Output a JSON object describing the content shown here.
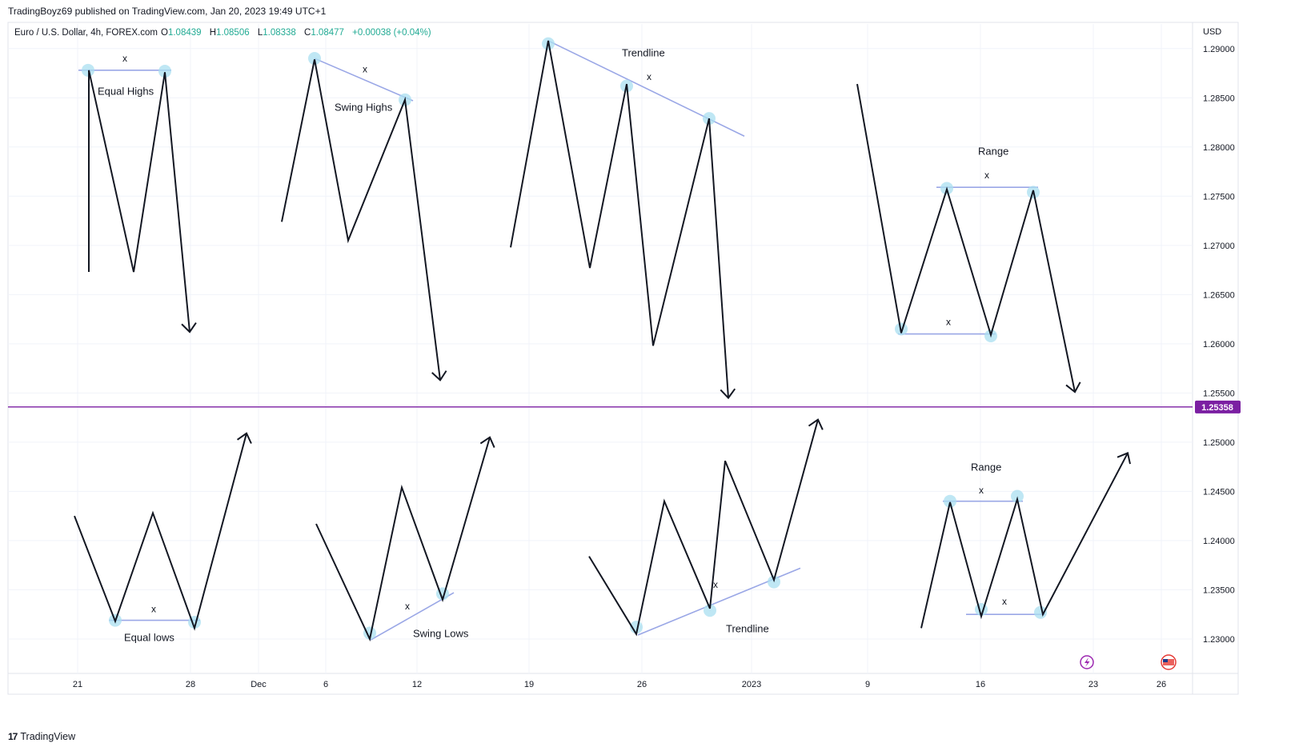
{
  "header": {
    "publisher": "TradingBoyz69 published on TradingView.com, Jan 20, 2023 19:49 UTC+1"
  },
  "footer": {
    "brand": "TradingView",
    "logo_glyph": "17"
  },
  "chart_data": {
    "type": "line",
    "symbol": {
      "name": "Euro / U.S. Dollar, 4h, FOREX.com",
      "o_label": "O",
      "o_value": "1.08439",
      "h_label": "H",
      "h_value": "1.08506",
      "l_label": "L",
      "l_value": "1.08338",
      "c_label": "C",
      "c_value": "1.08477",
      "change": "+0.00038 (+0.04%)"
    },
    "currency": "USD",
    "ylim": [
      1.2265,
      1.2925
    ],
    "y_ticks": [
      "1.23000",
      "1.23500",
      "1.24000",
      "1.24500",
      "1.25000",
      "1.25500",
      "1.26000",
      "1.26500",
      "1.27000",
      "1.27500",
      "1.28000",
      "1.28500",
      "1.29000"
    ],
    "x_ticks": [
      "21",
      "28",
      "Dec",
      "6",
      "12",
      "19",
      "26",
      "2023",
      "9",
      "16",
      "23",
      "26"
    ],
    "price_line": {
      "value": 1.25358,
      "label": "1.25358",
      "color": "#7b1fa2"
    },
    "colors": {
      "price": "#131722",
      "level": "#9aa7e6",
      "marker": "#a9dff0",
      "up": "#22ab94",
      "grid": "#f0f3fa"
    },
    "series": [
      {
        "points": [
          [
            1.2673,
            0
          ],
          [
            1.2878,
            0
          ],
          [
            1.2673,
            1
          ],
          [
            1.2876,
            2
          ],
          [
            1.2612,
            3
          ]
        ]
      },
      {
        "points": [
          [
            1.2724,
            4
          ],
          [
            1.2889,
            5
          ],
          [
            1.2705,
            6
          ],
          [
            1.2848,
            7
          ],
          [
            1.2563,
            8
          ]
        ]
      },
      {
        "points": [
          [
            1.2698,
            9
          ],
          [
            1.2908,
            10
          ],
          [
            1.2677,
            11
          ],
          [
            1.2864,
            12
          ],
          [
            1.2598,
            13
          ],
          [
            1.2829,
            14
          ],
          [
            1.2545,
            15
          ]
        ]
      },
      {
        "points": [
          [
            1.2864,
            16
          ],
          [
            1.2611,
            17
          ],
          [
            1.2757,
            18
          ],
          [
            1.2609,
            19
          ],
          [
            1.2756,
            20
          ],
          [
            1.2551,
            21
          ]
        ]
      },
      {
        "points": [
          [
            1.2425,
            22
          ],
          [
            1.2318,
            23
          ],
          [
            1.2428,
            24
          ],
          [
            1.2311,
            25
          ],
          [
            1.2509,
            26
          ]
        ]
      },
      {
        "points": [
          [
            1.2417,
            27
          ],
          [
            1.23,
            28
          ],
          [
            1.2454,
            29
          ],
          [
            1.234,
            30
          ],
          [
            1.2505,
            31
          ]
        ]
      },
      {
        "points": [
          [
            1.2384,
            32
          ],
          [
            1.2305,
            33
          ],
          [
            1.244,
            34
          ],
          [
            1.2331,
            35
          ],
          [
            1.2481,
            36
          ],
          [
            1.236,
            37
          ],
          [
            1.2523,
            38
          ]
        ]
      },
      {
        "points": [
          [
            1.2311,
            39
          ],
          [
            1.2439,
            40
          ],
          [
            1.2323,
            41
          ],
          [
            1.2442,
            42
          ],
          [
            1.2325,
            43
          ],
          [
            1.2489,
            44
          ]
        ]
      }
    ],
    "x_positions": [
      111,
      167,
      206,
      237,
      352,
      393,
      435,
      506,
      550,
      638,
      685,
      737,
      783,
      816,
      886,
      910,
      1071,
      1126,
      1183,
      1238,
      1291,
      1343,
      93,
      144,
      191,
      243,
      308,
      395,
      462,
      502,
      553,
      612,
      736,
      795,
      830,
      887,
      906,
      967,
      1022,
      1151,
      1187,
      1226,
      1271,
      1303,
      1409
    ],
    "levels": [
      {
        "x1": 98,
        "v1": 1.2878,
        "x2": 214,
        "v2": 1.2878
      },
      {
        "x1": 393,
        "v1": 1.289,
        "x2": 516,
        "v2": 1.2847
      },
      {
        "x1": 685,
        "v1": 1.2908,
        "x2": 930,
        "v2": 1.2811
      },
      {
        "x1": 1170,
        "v1": 1.2759,
        "x2": 1297,
        "v2": 1.2759
      },
      {
        "x1": 1122,
        "v1": 1.261,
        "x2": 1244,
        "v2": 1.261
      },
      {
        "x1": 136,
        "v1": 1.2319,
        "x2": 250,
        "v2": 1.2319
      },
      {
        "x1": 463,
        "v1": 1.2299,
        "x2": 567,
        "v2": 1.2347
      },
      {
        "x1": 797,
        "v1": 1.2304,
        "x2": 1000,
        "v2": 1.2372
      },
      {
        "x1": 1178,
        "v1": 1.244,
        "x2": 1278,
        "v2": 1.244
      },
      {
        "x1": 1207,
        "v1": 1.2325,
        "x2": 1306,
        "v2": 1.2325
      }
    ],
    "markers": [
      {
        "x": 110,
        "v": 1.2878
      },
      {
        "x": 206,
        "v": 1.2877
      },
      {
        "x": 393,
        "v": 1.289
      },
      {
        "x": 506,
        "v": 1.2848
      },
      {
        "x": 685,
        "v": 1.2905
      },
      {
        "x": 783,
        "v": 1.2862
      },
      {
        "x": 886,
        "v": 1.2829
      },
      {
        "x": 1183,
        "v": 1.2758
      },
      {
        "x": 1291,
        "v": 1.2754
      },
      {
        "x": 1126,
        "v": 1.2615
      },
      {
        "x": 1238,
        "v": 1.2608
      },
      {
        "x": 144,
        "v": 1.2319
      },
      {
        "x": 243,
        "v": 1.2317
      },
      {
        "x": 462,
        "v": 1.2306
      },
      {
        "x": 553,
        "v": 1.2346
      },
      {
        "x": 795,
        "v": 1.2312
      },
      {
        "x": 887,
        "v": 1.2329
      },
      {
        "x": 967,
        "v": 1.2358
      },
      {
        "x": 1187,
        "v": 1.244
      },
      {
        "x": 1271,
        "v": 1.2445
      },
      {
        "x": 1226,
        "v": 1.233
      },
      {
        "x": 1300,
        "v": 1.2327
      }
    ],
    "annotations": [
      {
        "text": "Equal Highs",
        "x": 122,
        "v": 1.2853,
        "anchor": "start"
      },
      {
        "text": "Swing Highs",
        "x": 418,
        "v": 1.2837,
        "anchor": "start"
      },
      {
        "text": "Trendline",
        "x": 777,
        "v": 1.2892,
        "anchor": "start"
      },
      {
        "text": "Range",
        "x": 1222,
        "v": 1.2792,
        "anchor": "start"
      },
      {
        "text": "Range",
        "x": 1213,
        "v": 1.2471,
        "anchor": "start"
      },
      {
        "text": "Equal lows",
        "x": 155,
        "v": 1.2298,
        "anchor": "start"
      },
      {
        "text": "Swing Lows",
        "x": 516,
        "v": 1.2302,
        "anchor": "start"
      },
      {
        "text": "Trendline",
        "x": 907,
        "v": 1.2307,
        "anchor": "start"
      }
    ],
    "x_marks": [
      {
        "text": "x",
        "x": 156,
        "v": 1.2887
      },
      {
        "text": "x",
        "x": 456,
        "v": 1.2876
      },
      {
        "text": "x",
        "x": 811,
        "v": 1.2868
      },
      {
        "text": "x",
        "x": 1233,
        "v": 1.2768
      },
      {
        "text": "x",
        "x": 1185,
        "v": 1.2619
      },
      {
        "text": "x",
        "x": 192,
        "v": 1.2327
      },
      {
        "text": "x",
        "x": 509,
        "v": 1.233
      },
      {
        "text": "x",
        "x": 894,
        "v": 1.2352
      },
      {
        "text": "x",
        "x": 1226,
        "v": 1.2448
      },
      {
        "text": "x",
        "x": 1255,
        "v": 1.2335
      }
    ],
    "arrow_ends": [
      4,
      9,
      16,
      22,
      27,
      32,
      39,
      45
    ]
  }
}
